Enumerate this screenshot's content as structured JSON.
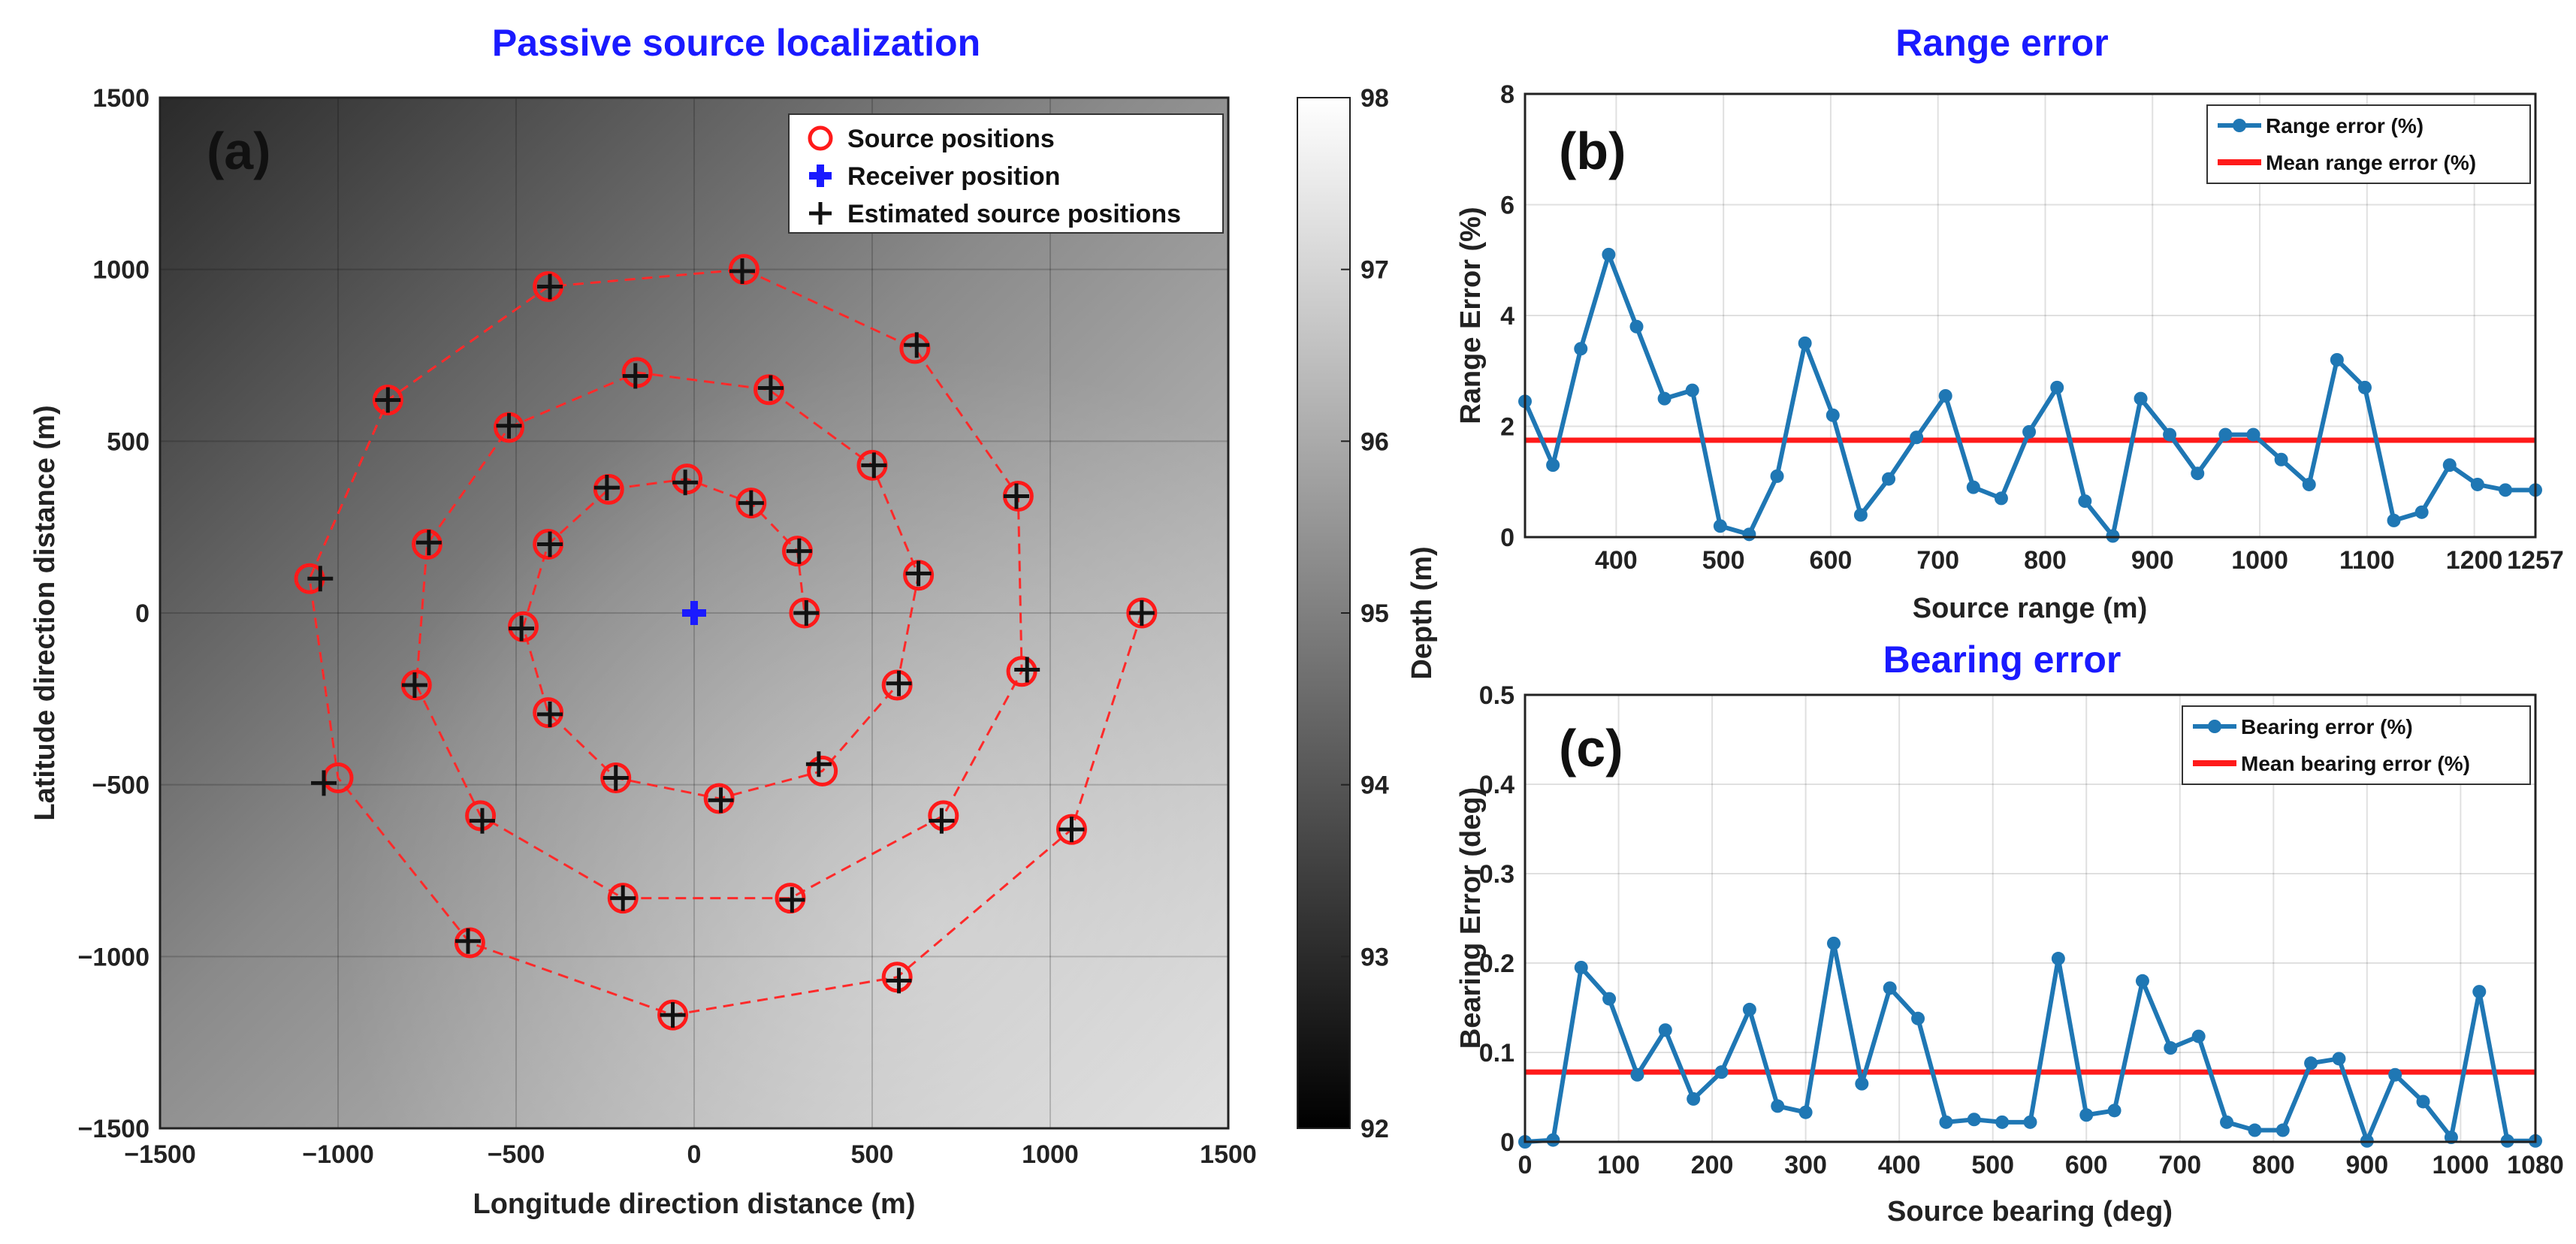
{
  "chart_data": [
    {
      "id": "a",
      "type": "scatter",
      "title": "Passive source localization",
      "panel_label": "(a)",
      "xlabel": "Longitude direction distance (m)",
      "ylabel": "Latitude direction distance (m)",
      "xlim": [
        -1500,
        1500
      ],
      "ylim": [
        -1500,
        1500
      ],
      "xticks": [
        -1500,
        -1000,
        -500,
        0,
        500,
        1000,
        1500
      ],
      "yticks": [
        -1500,
        -1000,
        -500,
        0,
        500,
        1000,
        1500
      ],
      "xtick_labels": [
        "−1500",
        "−1000",
        "−500",
        "0",
        "500",
        "1000",
        "1500"
      ],
      "ytick_labels": [
        "−1500",
        "−1000",
        "−500",
        "0",
        "500",
        "1000",
        "1500"
      ],
      "colorbar": {
        "label": "Depth (m)",
        "range": [
          92,
          98
        ],
        "ticks": [
          92,
          93,
          94,
          95,
          96,
          97,
          98
        ],
        "tick_labels": [
          "92",
          "93",
          "94",
          "95",
          "96",
          "97",
          "98"
        ]
      },
      "legend": {
        "position": "top-right",
        "entries": [
          "Source positions",
          "Receiver position",
          "Estimated source positions"
        ]
      },
      "receiver": [
        0,
        0
      ],
      "source_positions": [
        [
          1257,
          0
        ],
        [
          1060,
          -630
        ],
        [
          570,
          -1060
        ],
        [
          -60,
          -1170
        ],
        [
          -630,
          -960
        ],
        [
          -1000,
          -480
        ],
        [
          -1080,
          100
        ],
        [
          -860,
          620
        ],
        [
          -410,
          950
        ],
        [
          140,
          1000
        ],
        [
          620,
          770
        ],
        [
          910,
          340
        ],
        [
          920,
          -170
        ],
        [
          700,
          -590
        ],
        [
          270,
          -830
        ],
        [
          -200,
          -830
        ],
        [
          -600,
          -590
        ],
        [
          -780,
          -210
        ],
        [
          -750,
          200
        ],
        [
          -520,
          540
        ],
        [
          -160,
          700
        ],
        [
          210,
          650
        ],
        [
          500,
          430
        ],
        [
          630,
          110
        ],
        [
          570,
          -210
        ],
        [
          360,
          -460
        ],
        [
          70,
          -540
        ],
        [
          -220,
          -480
        ],
        [
          -410,
          -290
        ],
        [
          -480,
          -40
        ],
        [
          -410,
          200
        ],
        [
          -240,
          360
        ],
        [
          -20,
          390
        ],
        [
          160,
          320
        ],
        [
          290,
          180
        ],
        [
          310,
          0
        ]
      ],
      "estimated_positions": [
        [
          1257,
          0
        ],
        [
          1060,
          -630
        ],
        [
          575,
          -1070
        ],
        [
          -60,
          -1170
        ],
        [
          -635,
          -955
        ],
        [
          -1040,
          -495
        ],
        [
          -1050,
          100
        ],
        [
          -860,
          620
        ],
        [
          -405,
          950
        ],
        [
          135,
          995
        ],
        [
          625,
          780
        ],
        [
          905,
          340
        ],
        [
          935,
          -165
        ],
        [
          695,
          -605
        ],
        [
          275,
          -835
        ],
        [
          -200,
          -830
        ],
        [
          -595,
          -605
        ],
        [
          -785,
          -210
        ],
        [
          -745,
          205
        ],
        [
          -520,
          545
        ],
        [
          -165,
          690
        ],
        [
          215,
          655
        ],
        [
          505,
          430
        ],
        [
          630,
          115
        ],
        [
          575,
          -205
        ],
        [
          350,
          -440
        ],
        [
          75,
          -545
        ],
        [
          -220,
          -480
        ],
        [
          -405,
          -295
        ],
        [
          -485,
          -45
        ],
        [
          -405,
          200
        ],
        [
          -245,
          365
        ],
        [
          -25,
          380
        ],
        [
          160,
          320
        ],
        [
          295,
          180
        ],
        [
          315,
          0
        ]
      ]
    },
    {
      "id": "b",
      "type": "line",
      "title": "Range error",
      "panel_label": "(b)",
      "xlabel": "Source range (m)",
      "ylabel": "Range Error (%)",
      "xlim": [
        315,
        1257
      ],
      "ylim": [
        0,
        8
      ],
      "xticks": [
        400,
        500,
        600,
        700,
        800,
        900,
        1000,
        1100,
        1200,
        1257
      ],
      "xtick_labels": [
        "400",
        "500",
        "600",
        "700",
        "800",
        "900",
        "1000",
        "1100",
        "1200",
        "1257"
      ],
      "yticks": [
        0,
        2,
        4,
        6,
        8
      ],
      "ytick_labels": [
        "0",
        "2",
        "4",
        "6",
        "8"
      ],
      "legend": {
        "position": "top-right",
        "entries": [
          "Range error (%)",
          "Mean range error (%)"
        ]
      },
      "mean": 1.75,
      "x": [
        315,
        341,
        367,
        393,
        419,
        445,
        471,
        497,
        524,
        550,
        576,
        602,
        628,
        654,
        680,
        707,
        733,
        759,
        785,
        811,
        837,
        863,
        889,
        916,
        942,
        968,
        994,
        1020,
        1046,
        1072,
        1098,
        1125,
        1151,
        1177,
        1203,
        1229,
        1257
      ],
      "values": [
        2.45,
        1.3,
        3.4,
        5.1,
        3.8,
        2.5,
        2.65,
        0.2,
        0.05,
        1.1,
        3.5,
        2.2,
        0.4,
        1.05,
        1.8,
        2.55,
        0.9,
        0.7,
        1.9,
        2.7,
        0.65,
        0.02,
        2.5,
        1.85,
        1.15,
        1.85,
        1.85,
        1.4,
        0.95,
        3.2,
        2.7,
        0.3,
        0.45,
        1.3,
        0.95,
        0.85,
        0.85
      ]
    },
    {
      "id": "c",
      "type": "line",
      "title": "Bearing error",
      "panel_label": "(c)",
      "xlabel": "Source bearing (deg)",
      "ylabel": "Bearing Error (deg)",
      "xlim": [
        0,
        1080
      ],
      "ylim": [
        0,
        0.5
      ],
      "xticks": [
        0,
        100,
        200,
        300,
        400,
        500,
        600,
        700,
        800,
        900,
        1000,
        1080
      ],
      "xtick_labels": [
        "0",
        "100",
        "200",
        "300",
        "400",
        "500",
        "600",
        "700",
        "800",
        "900",
        "1000",
        "1080"
      ],
      "yticks": [
        0,
        0.1,
        0.2,
        0.3,
        0.4,
        0.5
      ],
      "ytick_labels": [
        "0",
        "0.1",
        "0.2",
        "0.3",
        "0.4",
        "0.5"
      ],
      "legend": {
        "position": "top-right",
        "entries": [
          "Bearing error (%)",
          "Mean bearing error (%)"
        ]
      },
      "mean": 0.078,
      "x": [
        0,
        30,
        60,
        90,
        120,
        150,
        180,
        210,
        240,
        270,
        300,
        330,
        360,
        390,
        420,
        450,
        480,
        510,
        540,
        570,
        600,
        630,
        660,
        690,
        720,
        750,
        780,
        810,
        840,
        870,
        900,
        930,
        960,
        990,
        1020,
        1050,
        1080
      ],
      "values": [
        0.0,
        0.002,
        0.195,
        0.16,
        0.075,
        0.125,
        0.048,
        0.078,
        0.148,
        0.04,
        0.033,
        0.222,
        0.065,
        0.172,
        0.138,
        0.022,
        0.025,
        0.022,
        0.022,
        0.205,
        0.03,
        0.035,
        0.18,
        0.105,
        0.118,
        0.022,
        0.013,
        0.013,
        0.088,
        0.093,
        0.001,
        0.075,
        0.045,
        0.005,
        0.168,
        0.001,
        0.001
      ]
    }
  ]
}
